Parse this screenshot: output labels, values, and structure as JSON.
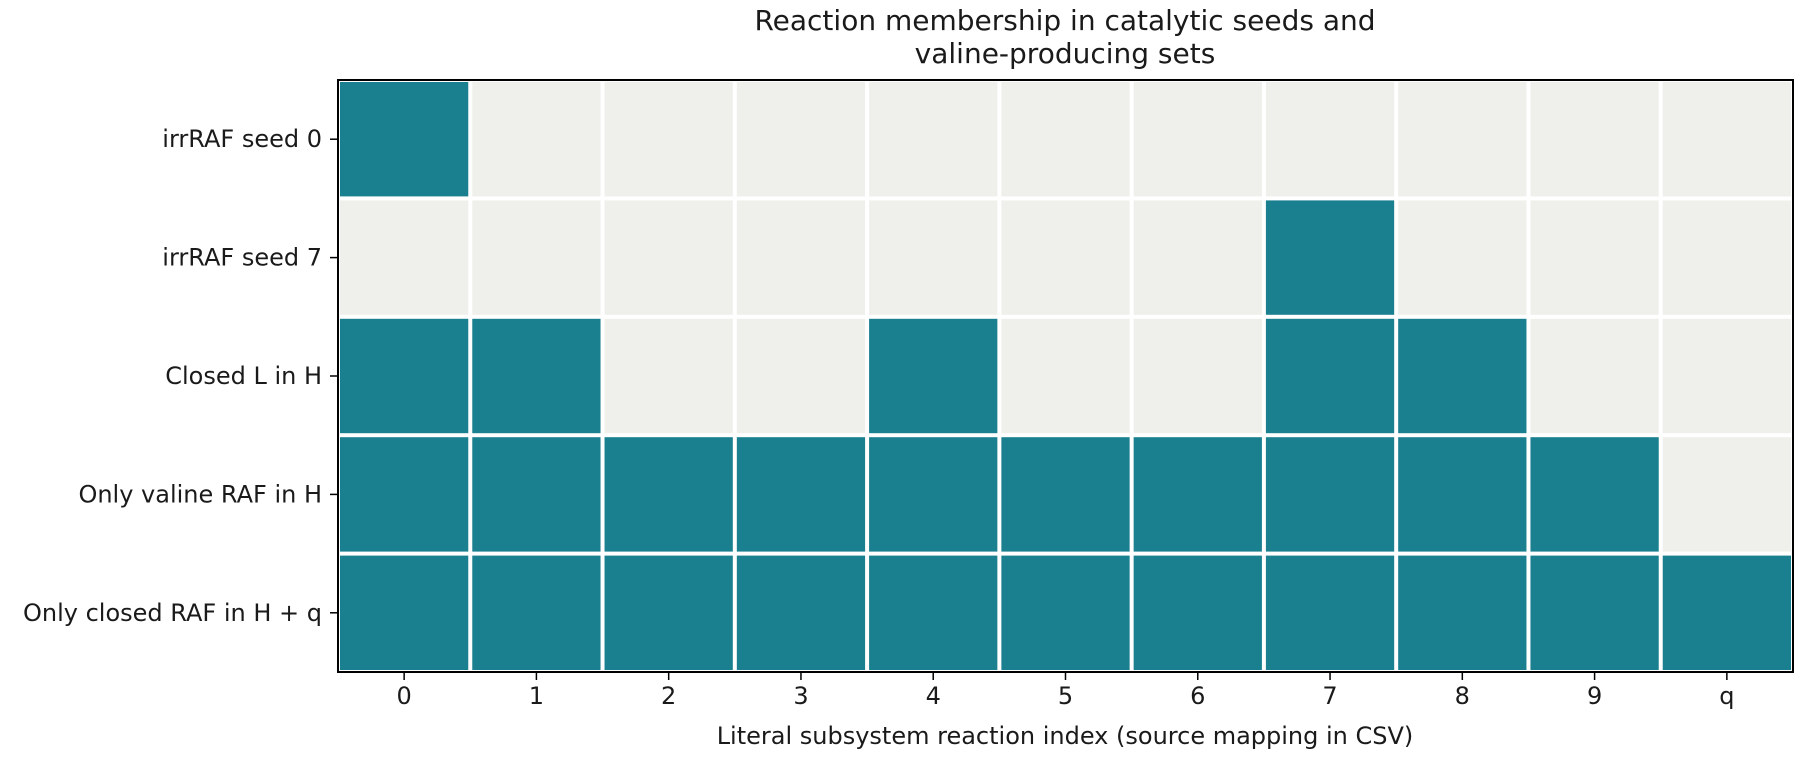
{
  "chart_data": {
    "type": "heatmap",
    "title_lines": [
      "Reaction membership in catalytic seeds and",
      "valine-producing sets"
    ],
    "xlabel": "Literal subsystem reaction index (source mapping in CSV)",
    "ylabel": "",
    "x_categories": [
      "0",
      "1",
      "2",
      "3",
      "4",
      "5",
      "6",
      "7",
      "8",
      "9",
      "q"
    ],
    "y_categories": [
      "irrRAF seed 0",
      "irrRAF seed 7",
      "Closed L in H",
      "Only valine RAF in H",
      "Only closed RAF in H + q"
    ],
    "values": [
      [
        1,
        0,
        0,
        0,
        0,
        0,
        0,
        0,
        0,
        0,
        0
      ],
      [
        0,
        0,
        0,
        0,
        0,
        0,
        0,
        1,
        0,
        0,
        0
      ],
      [
        1,
        1,
        0,
        0,
        1,
        0,
        0,
        1,
        1,
        0,
        0
      ],
      [
        1,
        1,
        1,
        1,
        1,
        1,
        1,
        1,
        1,
        1,
        0
      ],
      [
        1,
        1,
        1,
        1,
        1,
        1,
        1,
        1,
        1,
        1,
        1
      ]
    ],
    "colors": {
      "member": "#1a7f8f",
      "non_member": "#efefeb",
      "cell_border": "#ffffff",
      "frame": "#000000"
    },
    "grid": false,
    "legend": "none"
  }
}
